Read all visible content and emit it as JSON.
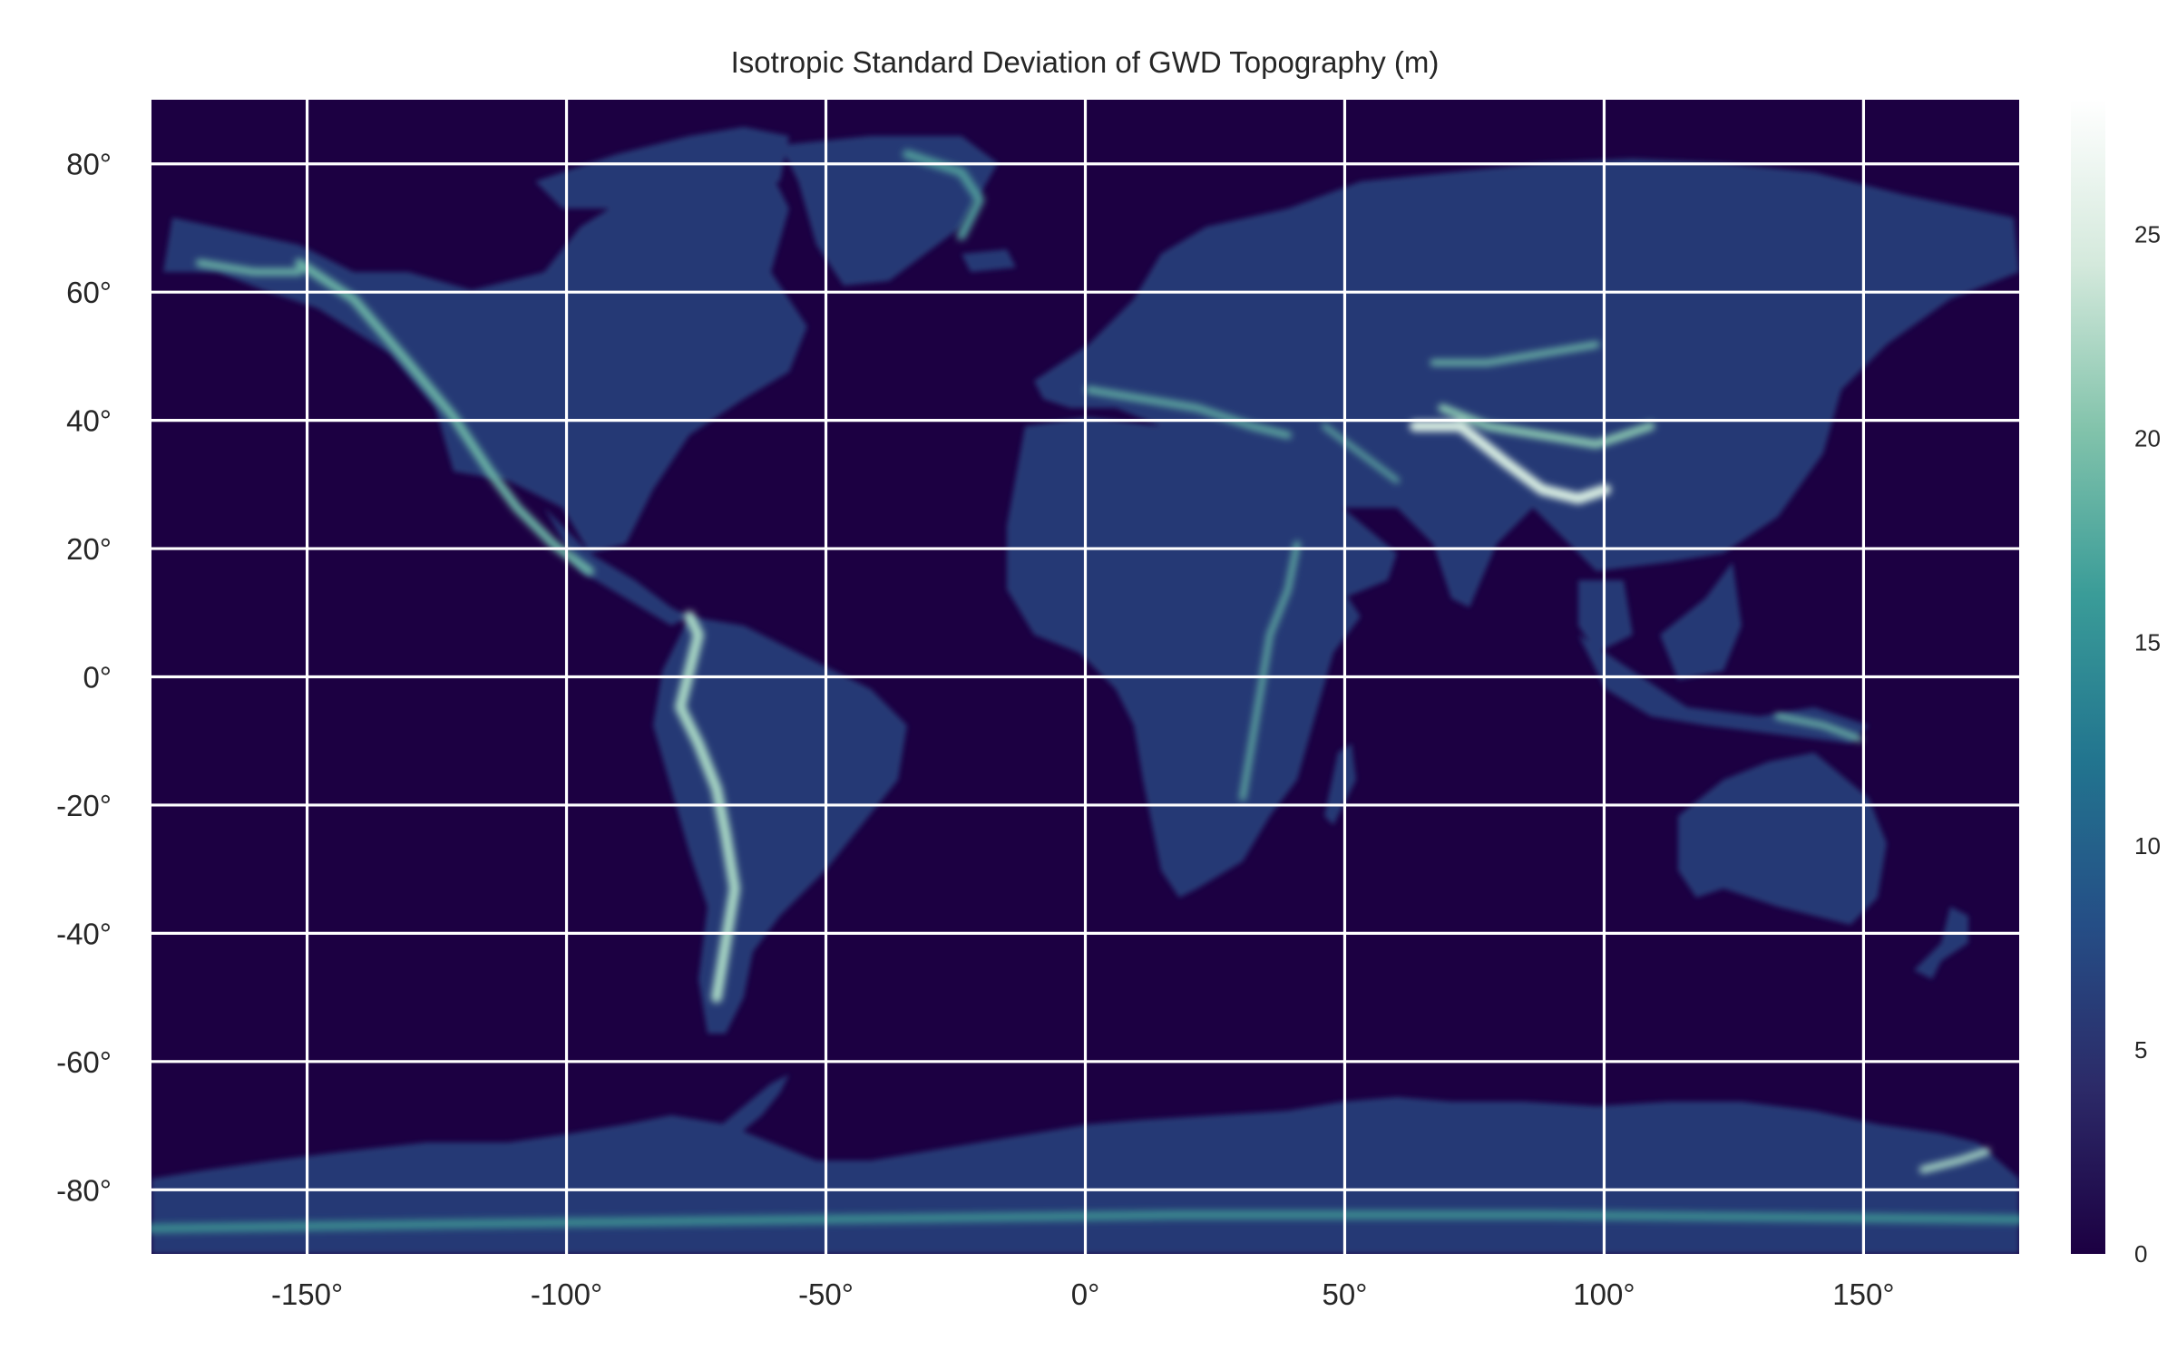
{
  "chart_data": {
    "type": "heatmap",
    "title": "Isotropic Standard Deviation of GWD Topography (m)",
    "xlabel": "",
    "ylabel": "",
    "xlim": [
      -180,
      180
    ],
    "ylim": [
      -90,
      90
    ],
    "x_ticks": [
      -150,
      -100,
      -50,
      0,
      50,
      100,
      150
    ],
    "y_ticks": [
      80,
      60,
      40,
      20,
      0,
      -20,
      -40,
      -60,
      -80
    ],
    "x_tick_labels": [
      "-150°",
      "-100°",
      "-50°",
      "0°",
      "50°",
      "100°",
      "150°"
    ],
    "y_tick_labels": [
      "80°",
      "60°",
      "40°",
      "20°",
      "0°",
      "-20°",
      "-40°",
      "-60°",
      "-80°"
    ],
    "grid": true,
    "colormap": [
      "#1c0042",
      "#2c2a68",
      "#254e86",
      "#22758f",
      "#3a9c98",
      "#82c3ab",
      "#d4e9dc",
      "#ffffff"
    ],
    "colorbar": {
      "range": [
        0,
        28.3
      ],
      "ticks": [
        0,
        5,
        10,
        15,
        20,
        25
      ],
      "tick_labels": [
        "0",
        "5",
        "10",
        "15",
        "20",
        "25"
      ]
    },
    "background_color": "#1c0042"
  }
}
